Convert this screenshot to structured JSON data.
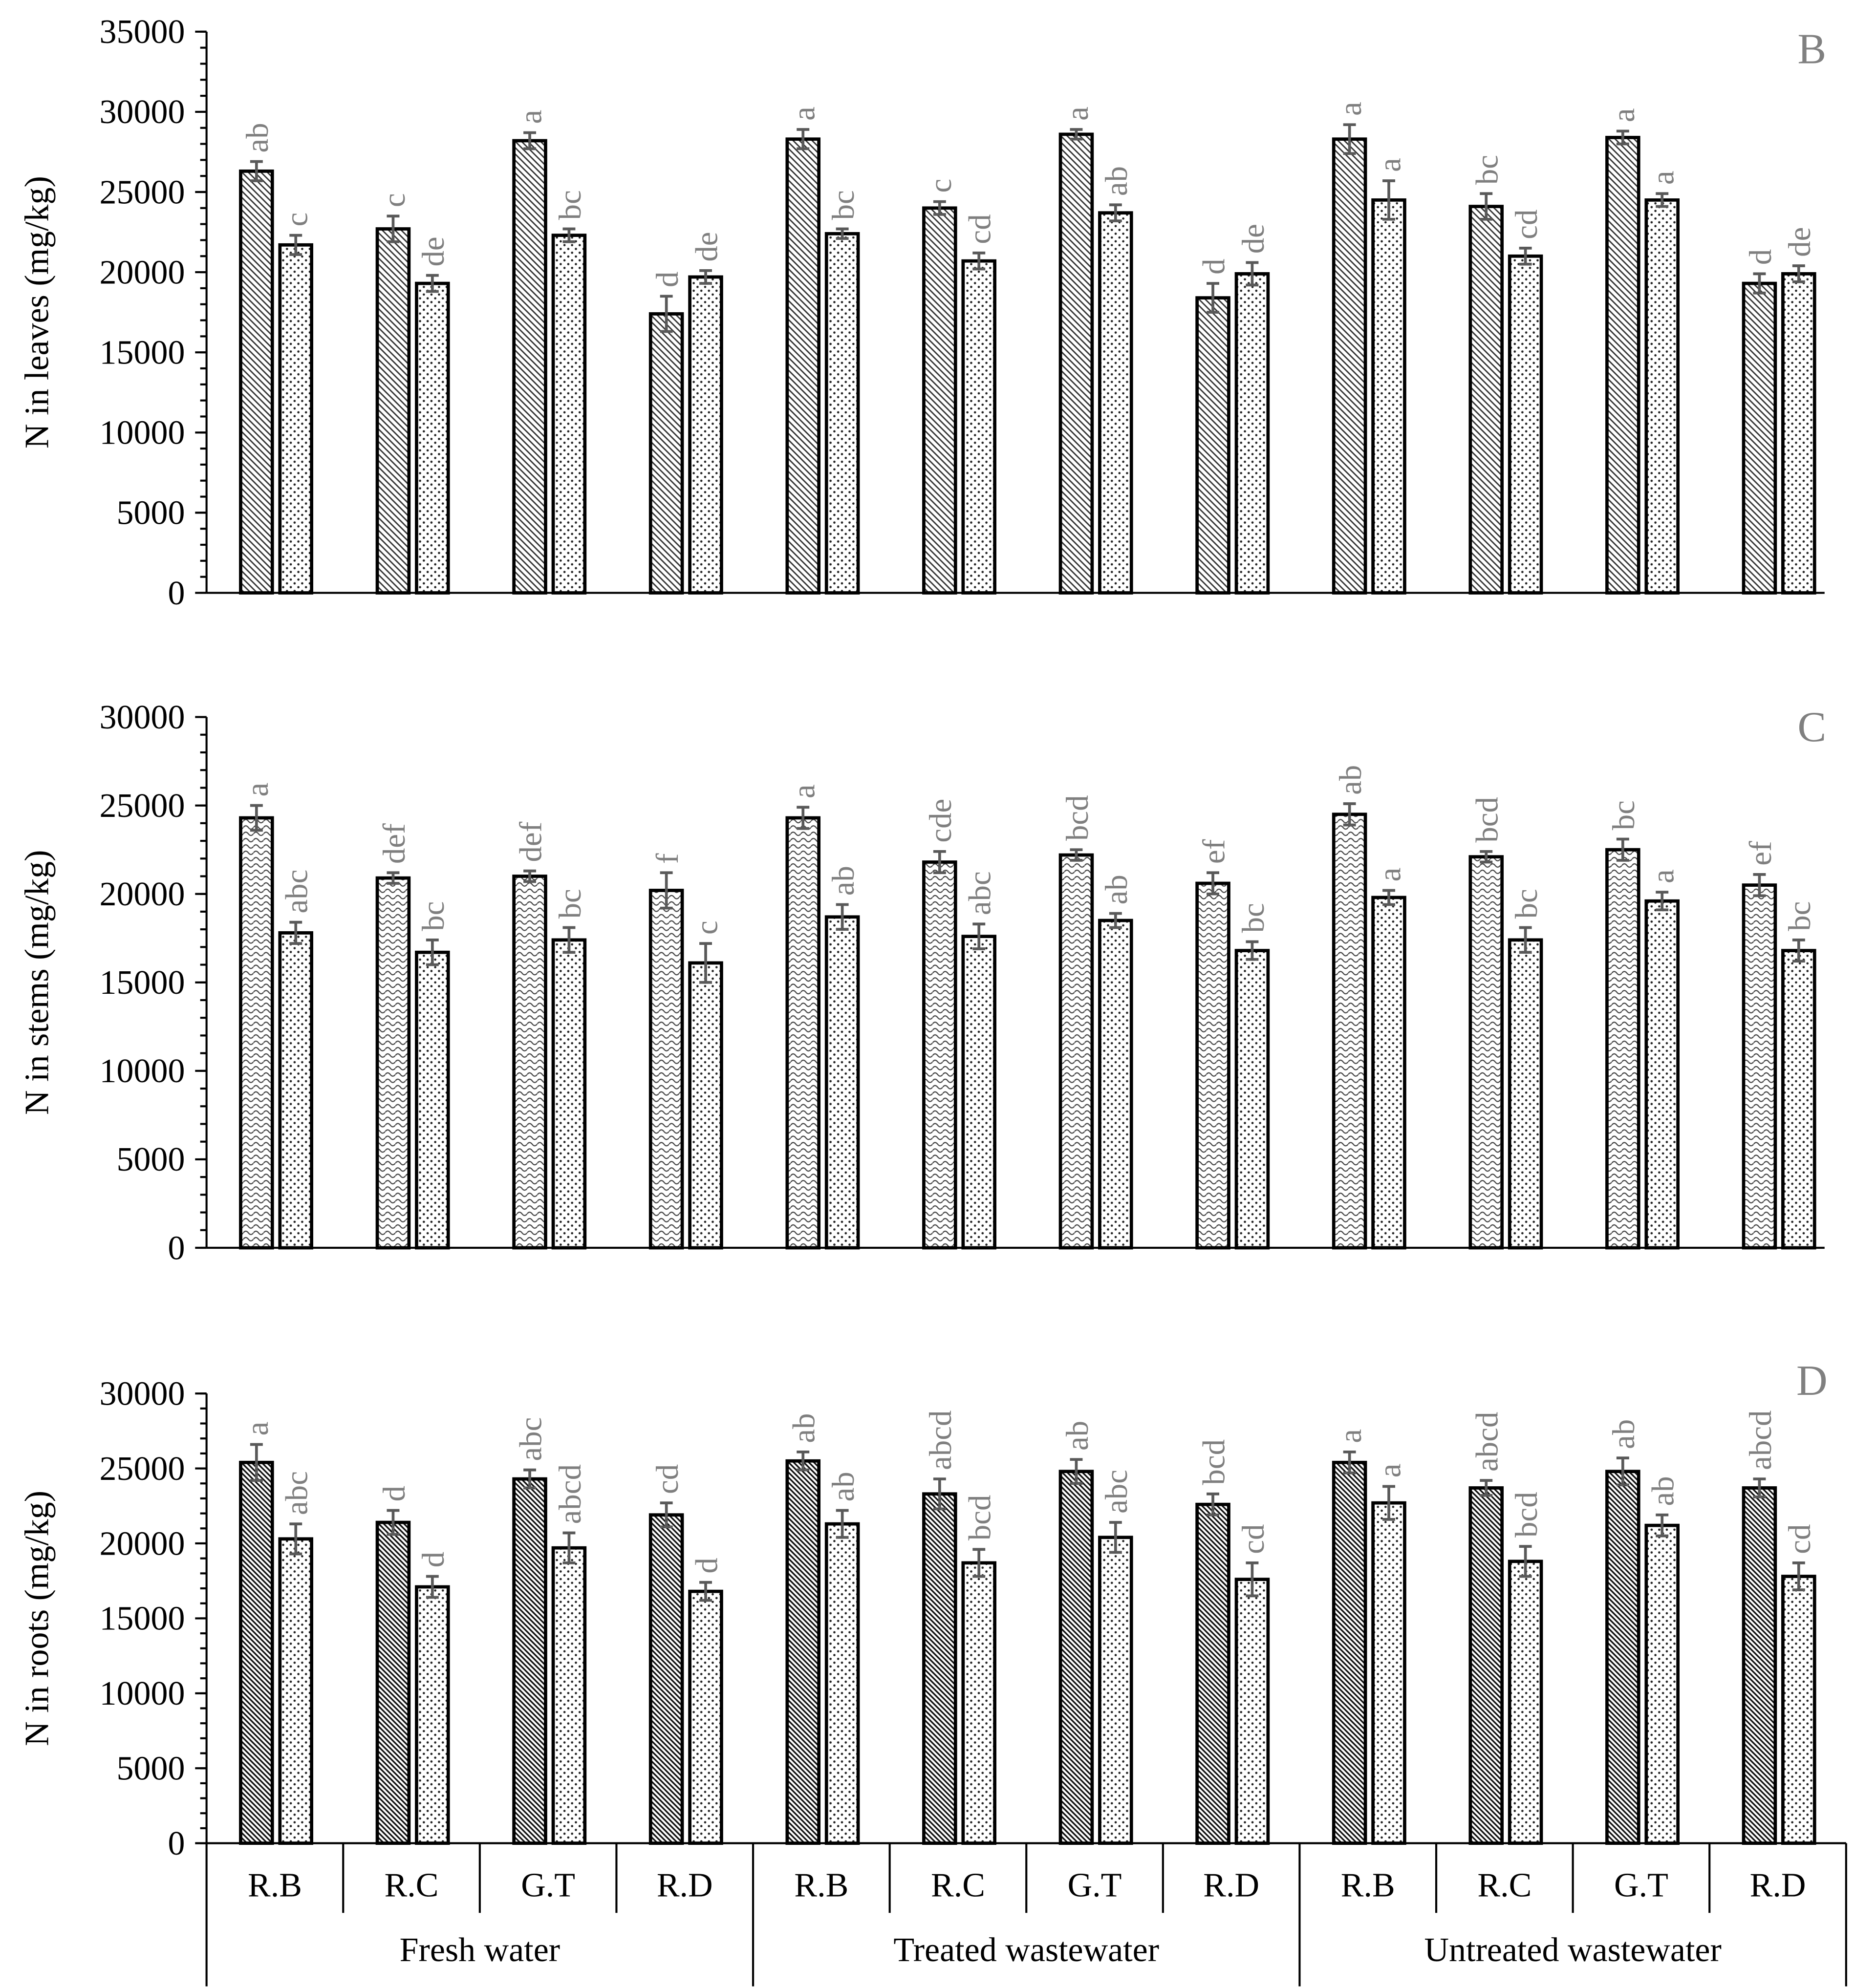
{
  "chart_data": {
    "type": "bar",
    "groups": [
      {
        "label": "Fresh water",
        "categories": [
          "R.B",
          "R.C",
          "G.T",
          "R.D"
        ]
      },
      {
        "label": "Treated wastewater",
        "categories": [
          "R.B",
          "R.C",
          "G.T",
          "R.D"
        ]
      },
      {
        "label": "Untreated wastewater",
        "categories": [
          "R.B",
          "R.C",
          "G.T",
          "R.D"
        ]
      }
    ],
    "panels": [
      {
        "label": "B",
        "ylabel": "N in leaves (mg/kg)",
        "ylim": [
          0,
          35000
        ],
        "yticks": [
          0,
          5000,
          10000,
          15000,
          20000,
          25000,
          30000,
          35000
        ],
        "series": [
          {
            "values": [
              26300,
              22700,
              28200,
              17400,
              28300,
              24000,
              28600,
              18400,
              28300,
              24100,
              28400,
              19300
            ],
            "errors": [
              600,
              800,
              500,
              1100,
              600,
              400,
              300,
              900,
              900,
              800,
              400,
              600
            ],
            "letters": [
              "ab",
              "c",
              "a",
              "d",
              "a",
              "c",
              "a",
              "d",
              "a",
              "bc",
              "a",
              "d"
            ]
          },
          {
            "values": [
              21700,
              19300,
              22300,
              19700,
              22400,
              20700,
              23700,
              19900,
              24500,
              21000,
              24500,
              19900
            ],
            "errors": [
              600,
              500,
              400,
              400,
              300,
              500,
              500,
              700,
              1200,
              500,
              400,
              500
            ],
            "letters": [
              "c",
              "de",
              "bc",
              "de",
              "bc",
              "cd",
              "ab",
              "de",
              "a",
              "cd",
              "a",
              "de"
            ]
          }
        ]
      },
      {
        "label": "C",
        "ylabel": "N in stems (mg/kg)",
        "ylim": [
          0,
          30000
        ],
        "yticks": [
          0,
          5000,
          10000,
          15000,
          20000,
          25000,
          30000
        ],
        "series": [
          {
            "values": [
              24300,
              20900,
              21000,
              20200,
              24300,
              21800,
              22200,
              20600,
              24500,
              22100,
              22500,
              20500
            ],
            "errors": [
              700,
              300,
              300,
              1000,
              600,
              600,
              300,
              600,
              600,
              300,
              600,
              600
            ],
            "letters": [
              "a",
              "def",
              "def",
              "f",
              "a",
              "cde",
              "bcd",
              "ef",
              "ab",
              "bcd",
              "bc",
              "ef"
            ]
          },
          {
            "values": [
              17800,
              16700,
              17400,
              16100,
              18700,
              17600,
              18500,
              16800,
              19800,
              17400,
              19600,
              16800
            ],
            "errors": [
              600,
              700,
              700,
              1100,
              700,
              700,
              400,
              500,
              400,
              700,
              500,
              600
            ],
            "letters": [
              "abc",
              "bc",
              "bc",
              "c",
              "ab",
              "abc",
              "ab",
              "bc",
              "a",
              "bc",
              "a",
              "bc"
            ]
          }
        ]
      },
      {
        "label": "D",
        "ylabel": "N in roots (mg/kg)",
        "ylim": [
          0,
          30000
        ],
        "yticks": [
          0,
          5000,
          10000,
          15000,
          20000,
          25000,
          30000
        ],
        "series": [
          {
            "values": [
              25400,
              21400,
              24300,
              21900,
              25500,
              23300,
              24800,
              22600,
              25400,
              23700,
              24800,
              23700
            ],
            "errors": [
              1200,
              800,
              600,
              800,
              600,
              1000,
              800,
              700,
              700,
              500,
              900,
              600
            ],
            "letters": [
              "a",
              "d",
              "abc",
              "cd",
              "ab",
              "abcd",
              "ab",
              "bcd",
              "a",
              "abcd",
              "ab",
              "abcd"
            ]
          },
          {
            "values": [
              20300,
              17100,
              19700,
              16800,
              21300,
              18700,
              20400,
              17600,
              22700,
              18800,
              21200,
              17800
            ],
            "errors": [
              1000,
              700,
              1000,
              600,
              900,
              900,
              1000,
              1100,
              1100,
              1000,
              700,
              900
            ],
            "letters": [
              "abc",
              "d",
              "abcd",
              "d",
              "ab",
              "bcd",
              "abc",
              "cd",
              "a",
              "bcd",
              "ab",
              "cd"
            ]
          }
        ]
      }
    ]
  }
}
